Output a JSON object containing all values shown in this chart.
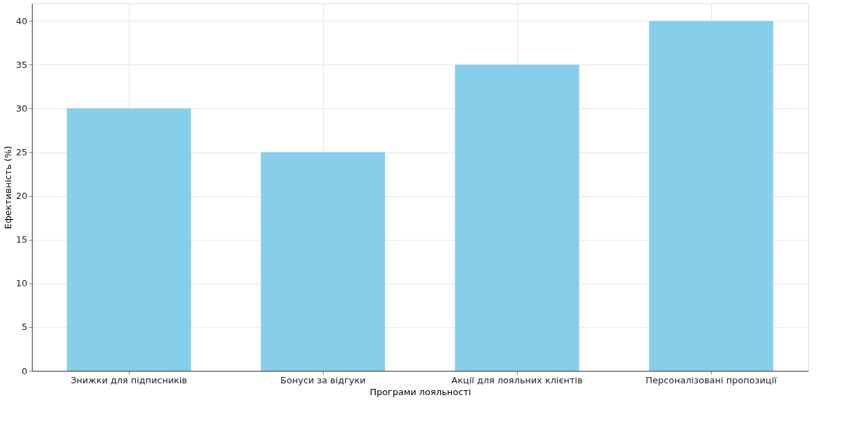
{
  "chart_data": {
    "type": "bar",
    "categories": [
      "Знижки для підписників",
      "Бонуси за відгуки",
      "Акції для лояльних клієнтів",
      "Персоналізовані пропозиції"
    ],
    "values": [
      30,
      25,
      35,
      40
    ],
    "color": "#87ceeb",
    "xlabel": "Програми лояльності",
    "ylabel": "Ефективність (%)",
    "ylim": [
      0,
      42
    ],
    "yticks": [
      0,
      5,
      10,
      15,
      20,
      25,
      30,
      35,
      40
    ],
    "grid": true
  }
}
